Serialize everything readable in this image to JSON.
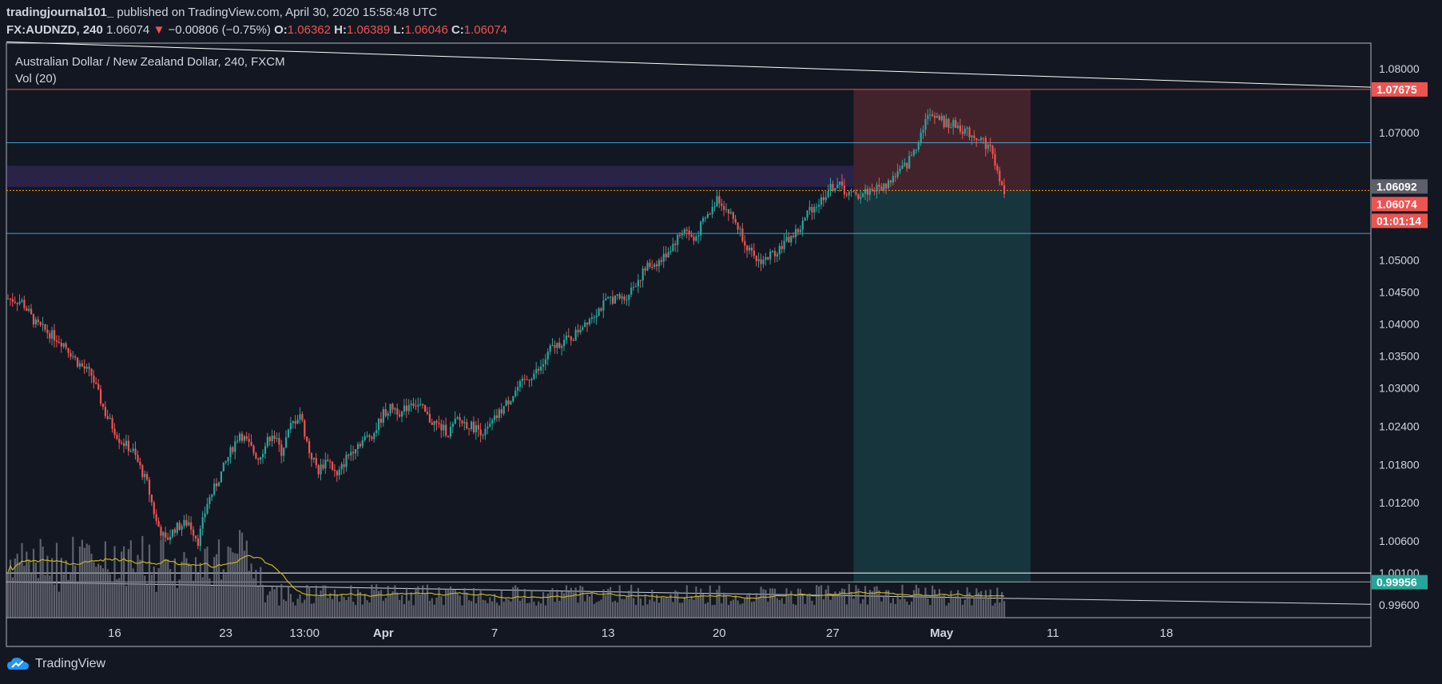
{
  "header": {
    "author": "tradingjournal101_",
    "published_text": "published on TradingView.com, April 30, 2020 15:58:48 UTC",
    "symbol": "FX:AUDNZD, 240",
    "last": "1.06074",
    "arrow": "▼",
    "change": "−0.00806 (−0.75%)",
    "o_label": "O:",
    "o": "1.06362",
    "h_label": "H:",
    "h": "1.06389",
    "l_label": "L:",
    "l": "1.06046",
    "c_label": "C:",
    "c": "1.06074"
  },
  "legend": {
    "title": "Australian Dollar / New Zealand Dollar, 240, FXCM",
    "vol": "Vol (20)"
  },
  "footer": {
    "brand": "TradingView"
  },
  "colors": {
    "bg": "#131722",
    "up": "#26a69a",
    "down": "#ef5350",
    "grid_text": "#d1d4dc",
    "hline": "#4fc3f7",
    "vol": "#787b86",
    "vol_ma": "#c9b21c"
  },
  "chart_data": {
    "type": "candlestick",
    "title": "Australian Dollar / New Zealand Dollar, 240, FXCM",
    "y_ticks": [
      "1.08000",
      "1.07000",
      "1.05000",
      "1.04500",
      "1.04000",
      "1.03500",
      "1.03000",
      "1.02400",
      "1.01800",
      "1.01200",
      "1.00600",
      "1.00100",
      "0.99600"
    ],
    "y_range": [
      0.994,
      1.084
    ],
    "x_ticks": [
      "16",
      "23",
      "13:00",
      "Apr",
      "7",
      "13",
      "20",
      "27",
      "May",
      "11",
      "18"
    ],
    "price_labels": {
      "entry_stop": "1.07675",
      "current_line": "1.06092",
      "last": "1.06074",
      "countdown": "01:01:14",
      "target": "0.99956"
    },
    "horizontal_lines": [
      1.0684,
      1.0542
    ],
    "zone": [
      1.0615,
      1.0648
    ],
    "position": {
      "stop": 1.07675,
      "entry": 1.06092,
      "target": 0.99956
    },
    "close_path": [
      [
        0,
        1.044
      ],
      [
        6,
        1.0435
      ],
      [
        12,
        1.04
      ],
      [
        18,
        1.0385
      ],
      [
        24,
        1.037
      ],
      [
        30,
        1.034
      ],
      [
        36,
        1.032
      ],
      [
        42,
        1.026
      ],
      [
        48,
        1.022
      ],
      [
        54,
        1.02
      ],
      [
        60,
        1.015
      ],
      [
        64,
        1.009
      ],
      [
        68,
        1.006
      ],
      [
        72,
        1.008
      ],
      [
        78,
        1.009
      ],
      [
        82,
        1.006
      ],
      [
        86,
        1.012
      ],
      [
        90,
        1.015
      ],
      [
        96,
        1.02
      ],
      [
        100,
        1.023
      ],
      [
        104,
        1.021
      ],
      [
        108,
        1.019
      ],
      [
        114,
        1.023
      ],
      [
        118,
        1.02
      ],
      [
        122,
        1.024
      ],
      [
        126,
        1.026
      ],
      [
        130,
        1.02
      ],
      [
        134,
        1.017
      ],
      [
        138,
        1.019
      ],
      [
        142,
        1.016
      ],
      [
        146,
        1.019
      ],
      [
        150,
        1.021
      ],
      [
        154,
        1.022
      ],
      [
        158,
        1.023
      ],
      [
        162,
        1.026
      ],
      [
        166,
        1.027
      ],
      [
        170,
        1.026
      ],
      [
        174,
        1.028
      ],
      [
        178,
        1.027
      ],
      [
        182,
        1.025
      ],
      [
        186,
        1.024
      ],
      [
        190,
        1.023
      ],
      [
        194,
        1.025
      ],
      [
        200,
        1.024
      ],
      [
        206,
        1.023
      ],
      [
        210,
        1.025
      ],
      [
        214,
        1.027
      ],
      [
        220,
        1.03
      ],
      [
        226,
        1.032
      ],
      [
        230,
        1.033
      ],
      [
        234,
        1.036
      ],
      [
        238,
        1.037
      ],
      [
        244,
        1.038
      ],
      [
        248,
        1.04
      ],
      [
        254,
        1.042
      ],
      [
        260,
        1.044
      ],
      [
        266,
        1.044
      ],
      [
        270,
        1.046
      ],
      [
        276,
        1.049
      ],
      [
        282,
        1.05
      ],
      [
        286,
        1.052
      ],
      [
        292,
        1.055
      ],
      [
        296,
        1.053
      ],
      [
        300,
        1.056
      ],
      [
        304,
        1.058
      ],
      [
        306,
        1.06
      ],
      [
        310,
        1.058
      ],
      [
        314,
        1.056
      ],
      [
        318,
        1.053
      ],
      [
        322,
        1.05
      ],
      [
        326,
        1.05
      ],
      [
        330,
        1.051
      ],
      [
        336,
        1.053
      ],
      [
        342,
        1.055
      ],
      [
        346,
        1.058
      ],
      [
        350,
        1.059
      ],
      [
        354,
        1.061
      ],
      [
        358,
        1.062
      ],
      [
        362,
        1.0605
      ],
      [
        366,
        1.06
      ],
      [
        372,
        1.061
      ],
      [
        378,
        1.0615
      ],
      [
        382,
        1.063
      ],
      [
        388,
        1.065
      ],
      [
        392,
        1.068
      ],
      [
        396,
        1.072
      ],
      [
        400,
        1.073
      ],
      [
        404,
        1.0715
      ],
      [
        410,
        1.071
      ],
      [
        414,
        1.07
      ],
      [
        420,
        1.069
      ],
      [
        425,
        1.067
      ],
      [
        428,
        1.062
      ],
      [
        430,
        1.0607
      ]
    ]
  }
}
